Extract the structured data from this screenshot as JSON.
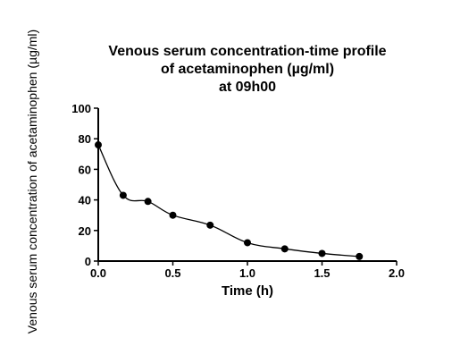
{
  "chart_data": {
    "type": "line",
    "title_lines": [
      "Venous serum concentration-time profile",
      "of acetaminophen (µg/ml)",
      "at 09h00"
    ],
    "xlabel": "Time (h)",
    "ylabel": "Venous  serum concentration of acetaminophen (µg/ml)",
    "xlim": [
      0,
      2.0
    ],
    "ylim": [
      0,
      100
    ],
    "x_ticks": [
      "0.0",
      "0.5",
      "1.0",
      "1.5",
      "2.0"
    ],
    "y_ticks": [
      "0",
      "20",
      "40",
      "60",
      "80",
      "100"
    ],
    "grid": false,
    "series": [
      {
        "x": [
          0,
          0.167,
          0.333,
          0.5,
          0.75,
          1.0,
          1.25,
          1.5,
          1.75
        ],
        "values": [
          76,
          43,
          39,
          30,
          23.5,
          12,
          8,
          5,
          3
        ]
      }
    ],
    "colors": {
      "line": "#000000",
      "marker": "#000000",
      "background": "#ffffff"
    }
  }
}
